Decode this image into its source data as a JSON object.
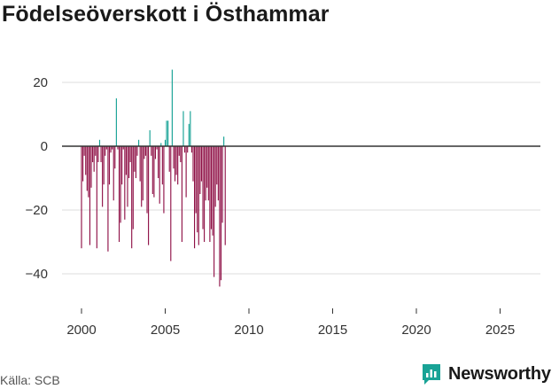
{
  "title": "Födelseöverskott i Östhammar",
  "source": "Källa: SCB",
  "brand": {
    "name": "Newsworthy",
    "icon": "bar-chart-icon"
  },
  "colors": {
    "negative": "#8e0f45",
    "positive": "#12a093",
    "brand": "#19a396",
    "grid": "#dddddd",
    "zero": "#333333"
  },
  "chart_data": {
    "type": "bar",
    "title": "Födelseöverskott i Östhammar",
    "xlabel": "",
    "ylabel": "",
    "xlim": [
      1999.7,
      2026.5
    ],
    "ylim": [
      -48,
      30
    ],
    "x_ticks": [
      2000,
      2005,
      2010,
      2015,
      2020,
      2025
    ],
    "y_ticks": [
      20,
      0,
      -20,
      -40
    ],
    "y_tick_labels": [
      "20",
      "0",
      "−20",
      "−40"
    ],
    "grid": true,
    "bars_per_year": 12,
    "start_year": 2000,
    "values": [
      -32,
      -11,
      -3,
      -9,
      -14,
      -16,
      -31,
      -13,
      -5,
      -8,
      -3,
      -32,
      -5,
      2,
      -5,
      -19,
      -12,
      -3,
      -1,
      -33,
      -12,
      -2,
      -1,
      -17,
      -7,
      15,
      -1,
      -30,
      -24,
      -12,
      -1,
      -23,
      -9,
      -19,
      -10,
      -5,
      -32,
      -26,
      -8,
      -10,
      -3,
      2,
      -11,
      -19,
      -17,
      -4,
      -3,
      -21,
      -31,
      5,
      -3,
      -15,
      -16,
      -4,
      -1,
      -10,
      -18,
      1,
      -12,
      -21,
      2,
      8,
      8,
      -8,
      -36,
      24,
      -7,
      -11,
      -9,
      -12,
      -3,
      -5,
      -30,
      11,
      -2,
      -16,
      -2,
      7,
      11,
      -2,
      -11,
      -32,
      -21,
      -27,
      -31,
      -15,
      -11,
      -26,
      -30,
      -17,
      -13,
      -17,
      -30,
      -26,
      -28,
      -41,
      -19,
      -12,
      -17,
      -44,
      -42,
      -24,
      3,
      -31
    ]
  }
}
